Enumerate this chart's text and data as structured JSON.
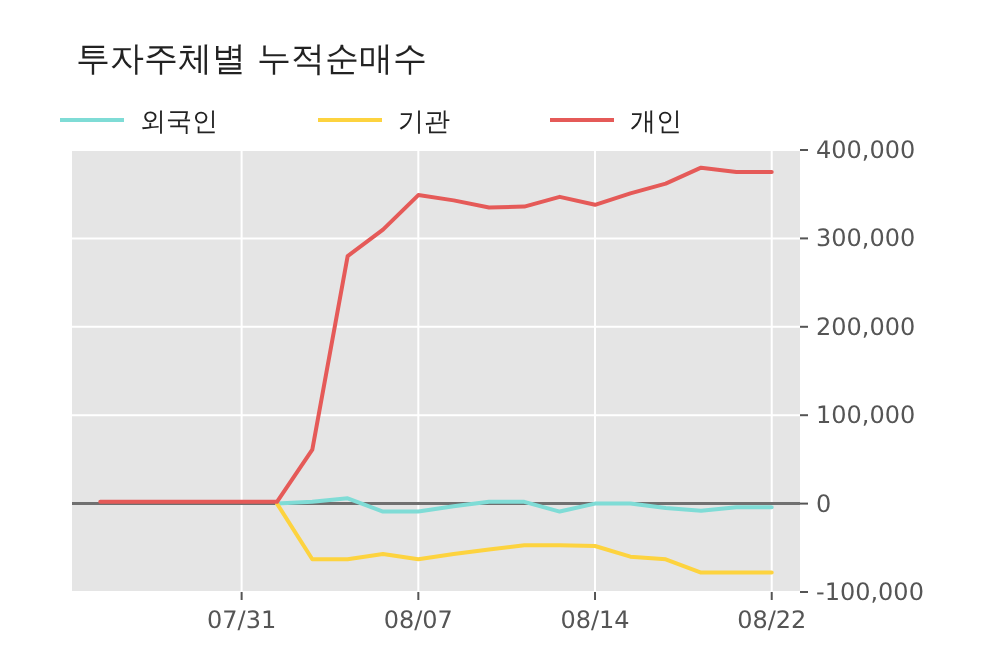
{
  "chart_data": {
    "type": "line",
    "title": "투자주체별 누적순매수",
    "categories": [
      null,
      null,
      null,
      null,
      "07/31",
      null,
      null,
      null,
      null,
      "08/07",
      null,
      null,
      null,
      null,
      "08/14",
      null,
      null,
      null,
      null,
      "08/22"
    ],
    "series": [
      {
        "name": "외국인",
        "color": "#7fdcd6",
        "values": [
          null,
          null,
          null,
          null,
          null,
          0,
          2000,
          6000,
          -9000,
          -9000,
          -3000,
          2000,
          2000,
          -9000,
          0,
          0,
          -5000,
          -8000,
          -4000,
          -4000
        ]
      },
      {
        "name": "기관",
        "color": "#fdd33f",
        "values": [
          null,
          null,
          null,
          null,
          null,
          0,
          -63000,
          -63000,
          -57000,
          -63000,
          -57000,
          -52000,
          -47000,
          -47000,
          -48000,
          -60000,
          -63000,
          -78000,
          -78000,
          -78000
        ]
      },
      {
        "name": "개인",
        "color": "#e55a58",
        "values": [
          2000,
          2000,
          2000,
          2000,
          2000,
          2000,
          61000,
          280000,
          310000,
          349000,
          343000,
          335000,
          336000,
          347000,
          338000,
          351000,
          362000,
          380000,
          375000,
          375000
        ]
      }
    ],
    "ylim": [
      -100000,
      400000
    ],
    "yticks": [
      {
        "value": -100000,
        "label": "-100,000"
      },
      {
        "value": 0,
        "label": "0"
      },
      {
        "value": 100000,
        "label": "100,000"
      },
      {
        "value": 200000,
        "label": "200,000"
      },
      {
        "value": 300000,
        "label": "300,000"
      },
      {
        "value": 400000,
        "label": "400,000"
      }
    ],
    "grid": true,
    "legend": "top left",
    "ref_lines": [
      {
        "axis": "y",
        "value": 0,
        "color": "#707070"
      }
    ]
  }
}
